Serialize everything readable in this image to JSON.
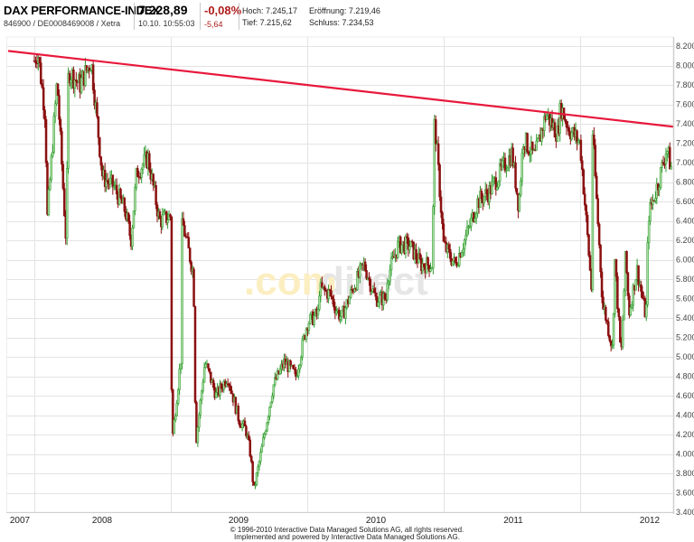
{
  "header": {
    "instrument_name": "DAX PERFORMANCE-INDEX",
    "identifiers": "846900 / DE0008469008 / Xetra",
    "last_price": "7.228,89",
    "timestamp": "10.10. 10:55:03",
    "change_percent": "-0,08%",
    "change_absolute": "-5,64",
    "high_label": "Hoch: 7.245,17",
    "low_label": "Tief: 7.215,62",
    "open_label": "Eröffnung: 7.219,46",
    "close_label": "Schluss: 7.234,53"
  },
  "watermark": {
    "prefix": ".com",
    "suffix": "direct"
  },
  "footer": {
    "line1": "© 1996-2010 Interactive Data Managed Solutions AG, all rights reserved.",
    "line2": "Implemented and powered by Interactive Data Managed Solutions AG."
  },
  "colors": {
    "up": "#2e9a2e",
    "up_fill": "#a8dca0",
    "down": "#8b1010",
    "trendline": "#e8183c",
    "grid": "#e3e3e3",
    "axis": "#cfcfcf",
    "change_negative": "#b01c1c"
  },
  "chart_data": {
    "type": "candlestick",
    "title": "DAX PERFORMANCE-INDEX",
    "xlabel": "",
    "ylabel": "",
    "ylim": [
      3400,
      8200
    ],
    "y_ticks": [
      "8.200",
      "8.000",
      "7.800",
      "7.600",
      "7.400",
      "7.200",
      "7.000",
      "6.800",
      "6.600",
      "6.400",
      "6.200",
      "6.000",
      "5.800",
      "5.600",
      "5.400",
      "5.200",
      "5.000",
      "4.800",
      "4.600",
      "4.400",
      "4.200",
      "4.000",
      "3.800",
      "3.600",
      "3.400"
    ],
    "x_ticks": [
      "2007",
      "2008",
      "2009",
      "2010",
      "2011",
      "2012"
    ],
    "x_range": [
      "2007-07",
      "2012-10"
    ],
    "grid": true,
    "legend": "none",
    "trendline": {
      "start": {
        "date": "2007-07",
        "value": 8150
      },
      "end": {
        "date": "2012-10",
        "value": 7370
      },
      "color": "#e8183c"
    },
    "approx_close_series": [
      {
        "date": "2007-07",
        "value": 8050
      },
      {
        "date": "2007-08",
        "value": 7450
      },
      {
        "date": "2007-09",
        "value": 7850
      },
      {
        "date": "2007-10",
        "value": 7950
      },
      {
        "date": "2007-11",
        "value": 7800
      },
      {
        "date": "2007-12",
        "value": 8050
      },
      {
        "date": "2008-01",
        "value": 6850
      },
      {
        "date": "2008-02",
        "value": 6750
      },
      {
        "date": "2008-03",
        "value": 6500
      },
      {
        "date": "2008-04",
        "value": 6900
      },
      {
        "date": "2008-05",
        "value": 7050
      },
      {
        "date": "2008-06",
        "value": 6400
      },
      {
        "date": "2008-07",
        "value": 6450
      },
      {
        "date": "2008-08",
        "value": 6400
      },
      {
        "date": "2008-09",
        "value": 5850
      },
      {
        "date": "2008-10",
        "value": 4950
      },
      {
        "date": "2008-11",
        "value": 4600
      },
      {
        "date": "2008-12",
        "value": 4800
      },
      {
        "date": "2009-01",
        "value": 4350
      },
      {
        "date": "2009-02",
        "value": 4000
      },
      {
        "date": "2009-03",
        "value": 4050
      },
      {
        "date": "2009-04",
        "value": 4700
      },
      {
        "date": "2009-05",
        "value": 4950
      },
      {
        "date": "2009-06",
        "value": 4800
      },
      {
        "date": "2009-07",
        "value": 5350
      },
      {
        "date": "2009-08",
        "value": 5450
      },
      {
        "date": "2009-09",
        "value": 5650
      },
      {
        "date": "2009-10",
        "value": 5400
      },
      {
        "date": "2009-11",
        "value": 5700
      },
      {
        "date": "2009-12",
        "value": 5950
      },
      {
        "date": "2010-01",
        "value": 5600
      },
      {
        "date": "2010-02",
        "value": 5600
      },
      {
        "date": "2010-03",
        "value": 6150
      },
      {
        "date": "2010-04",
        "value": 6150
      },
      {
        "date": "2010-05",
        "value": 5950
      },
      {
        "date": "2010-06",
        "value": 5950
      },
      {
        "date": "2010-07",
        "value": 6150
      },
      {
        "date": "2010-08",
        "value": 5950
      },
      {
        "date": "2010-09",
        "value": 6250
      },
      {
        "date": "2010-10",
        "value": 6600
      },
      {
        "date": "2010-11",
        "value": 6700
      },
      {
        "date": "2010-12",
        "value": 6900
      },
      {
        "date": "2011-01",
        "value": 7100
      },
      {
        "date": "2011-02",
        "value": 7250
      },
      {
        "date": "2011-03",
        "value": 7050
      },
      {
        "date": "2011-04",
        "value": 7500
      },
      {
        "date": "2011-05",
        "value": 7300
      },
      {
        "date": "2011-06",
        "value": 7350
      },
      {
        "date": "2011-07",
        "value": 7200
      },
      {
        "date": "2011-08",
        "value": 5700
      },
      {
        "date": "2011-09",
        "value": 5500
      },
      {
        "date": "2011-10",
        "value": 6100
      },
      {
        "date": "2011-11",
        "value": 6050
      },
      {
        "date": "2011-12",
        "value": 5900
      },
      {
        "date": "2012-01",
        "value": 6450
      },
      {
        "date": "2012-02",
        "value": 6850
      },
      {
        "date": "2012-03",
        "value": 6950
      },
      {
        "date": "2012-04",
        "value": 6750
      },
      {
        "date": "2012-05",
        "value": 6300
      },
      {
        "date": "2012-06",
        "value": 6400
      },
      {
        "date": "2012-07",
        "value": 6750
      },
      {
        "date": "2012-08",
        "value": 6950
      },
      {
        "date": "2012-09",
        "value": 7300
      },
      {
        "date": "2012-10",
        "value": 7230
      }
    ],
    "notable_points": {
      "high_2007": 8150,
      "low_2009": 3600,
      "high_2011": 7600,
      "low_2011": 4950,
      "last": 7228.89
    }
  }
}
